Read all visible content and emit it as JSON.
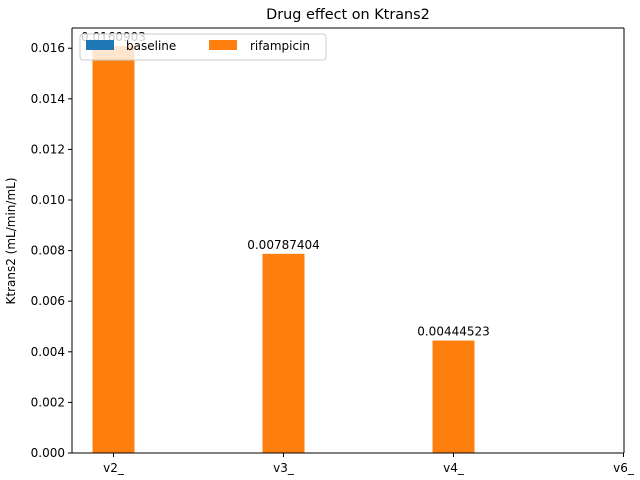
{
  "chart_data": {
    "type": "bar",
    "title": "Drug effect on Ktrans2",
    "xlabel": "",
    "ylabel": "Ktrans2 (mL/min/mL)",
    "categories": [
      "v2_",
      "v3_",
      "v4_",
      "v6_"
    ],
    "series": [
      {
        "name": "baseline",
        "color": "#1f77b4",
        "values": [
          0,
          0,
          0,
          0
        ]
      },
      {
        "name": "rifampicin",
        "color": "#ff7f0e",
        "values": [
          0.0160903,
          0.00787404,
          0.00444523,
          0
        ]
      }
    ],
    "data_labels": [
      "0.0160903",
      "0.00787404",
      "0.00444523"
    ],
    "ylim": [
      0,
      0.0168
    ],
    "yticks": [
      "0.000",
      "0.002",
      "0.004",
      "0.006",
      "0.008",
      "0.010",
      "0.012",
      "0.014",
      "0.016"
    ],
    "legend_position": "top-left",
    "grid": false
  }
}
